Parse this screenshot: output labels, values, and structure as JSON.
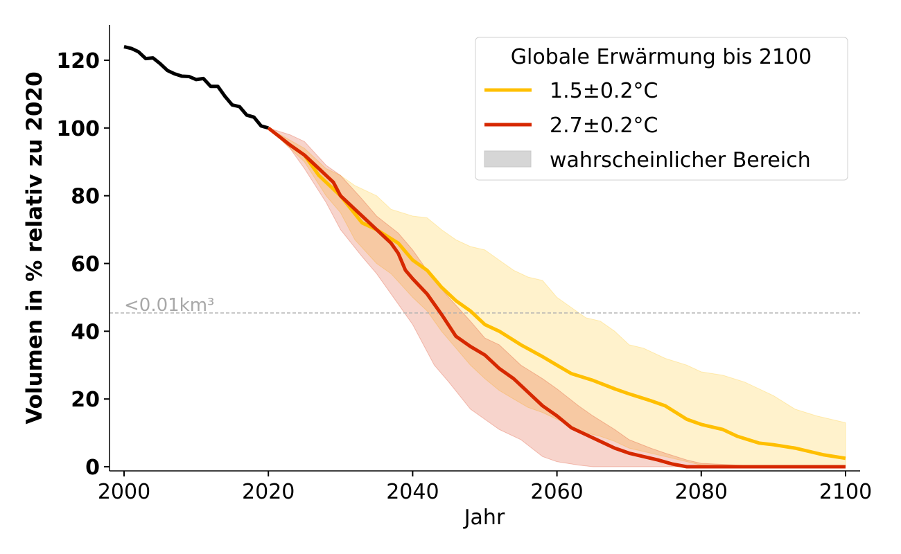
{
  "chart_data": {
    "type": "line",
    "xlabel": "Jahr",
    "ylabel": "Volumen in % relativ zu 2020",
    "xlim": [
      1998,
      2102
    ],
    "ylim": [
      -1.3,
      130
    ],
    "xticks": [
      2000,
      2020,
      2040,
      2060,
      2080,
      2100
    ],
    "yticks": [
      0,
      20,
      40,
      60,
      80,
      100,
      120
    ],
    "grid": false,
    "legend": {
      "title": "Globale Erwärmung bis 2100",
      "placement": "top-right",
      "entries": [
        "1.5±0.2°C",
        "2.7±0.2°C",
        "wahrscheinlicher Bereich"
      ]
    },
    "reference_line": {
      "y": 45.4,
      "label": "<0.01km³",
      "color": "#b0b0b0"
    },
    "colors": {
      "historical": "#000000",
      "low": "#FFBF00",
      "high": "#D62800",
      "band_neutral": "#d6d6d6"
    },
    "historical": {
      "x": [
        2000,
        2001,
        2002,
        2003,
        2004,
        2005,
        2006,
        2007,
        2008,
        2009,
        2010,
        2011,
        2012,
        2013,
        2014,
        2015,
        2016,
        2017,
        2018,
        2019,
        2020
      ],
      "y": [
        124,
        123.5,
        122.5,
        120.5,
        120.7,
        119,
        117,
        116,
        115.3,
        115.2,
        114.3,
        114.6,
        112.3,
        112.3,
        109.3,
        106.8,
        106.3,
        103.8,
        103.2,
        100.6,
        100
      ]
    },
    "series": [
      {
        "name": "1.5±0.2°C",
        "x": [
          2020,
          2023,
          2025,
          2027,
          2029,
          2030,
          2033,
          2035,
          2038,
          2040,
          2042,
          2044,
          2046,
          2048,
          2050,
          2052,
          2055,
          2058,
          2060,
          2062,
          2065,
          2068,
          2070,
          2073,
          2075,
          2078,
          2080,
          2083,
          2085,
          2088,
          2090,
          2093,
          2095,
          2097,
          2100
        ],
        "y": [
          100,
          95,
          92,
          86,
          82,
          80,
          72,
          70,
          66,
          61,
          58,
          53,
          49,
          46,
          42,
          40,
          36,
          32.5,
          30,
          27.5,
          25.5,
          23,
          21.5,
          19.5,
          18,
          14,
          12.5,
          11,
          9,
          7,
          6.5,
          5.5,
          4.5,
          3.5,
          2.5
        ],
        "band_x": [
          2020,
          2025,
          2028,
          2030,
          2032,
          2035,
          2037,
          2040,
          2042,
          2044,
          2046,
          2048,
          2050,
          2052,
          2054,
          2056,
          2058,
          2060,
          2062,
          2064,
          2066,
          2068,
          2070,
          2072,
          2075,
          2078,
          2080,
          2083,
          2086,
          2090,
          2093,
          2096,
          2100
        ],
        "band_upper": [
          100,
          94,
          88,
          86,
          83,
          80,
          76,
          74,
          73.5,
          70,
          67,
          65,
          64,
          61,
          58,
          56,
          55,
          50,
          47,
          44,
          43,
          40,
          36,
          35,
          32,
          30,
          28,
          27,
          25,
          21,
          17,
          15,
          13
        ],
        "band_lower": [
          100,
          90,
          80,
          75,
          67,
          60,
          57,
          50,
          46,
          40,
          35,
          30,
          26,
          22.5,
          20,
          17.5,
          16,
          14,
          12,
          10,
          9,
          7.5,
          5.5,
          4.5,
          3,
          1.5,
          0.5,
          0.2,
          0,
          0,
          0,
          0,
          0
        ]
      },
      {
        "name": "2.7±0.2°C",
        "x": [
          2020,
          2023,
          2025,
          2027,
          2029,
          2030,
          2033,
          2035,
          2037,
          2038,
          2039,
          2040,
          2042,
          2044,
          2046,
          2048,
          2050,
          2052,
          2054,
          2056,
          2058,
          2060,
          2062,
          2064,
          2066,
          2068,
          2070,
          2072,
          2074,
          2076,
          2078,
          2100
        ],
        "y": [
          100,
          95,
          92,
          88,
          84,
          80,
          74,
          70,
          66,
          63,
          58,
          55.5,
          51,
          45,
          38.5,
          35.5,
          33,
          29,
          26,
          22,
          18,
          15,
          11.5,
          9.5,
          7.5,
          5.5,
          4,
          3,
          2,
          0.8,
          0,
          0
        ],
        "band_x": [
          2020,
          2023,
          2025,
          2028,
          2030,
          2033,
          2035,
          2038,
          2040,
          2043,
          2045,
          2048,
          2050,
          2052,
          2055,
          2058,
          2060,
          2063,
          2065,
          2068,
          2070,
          2073,
          2075,
          2078,
          2080,
          2085,
          2090,
          2100
        ],
        "band_upper": [
          100,
          98,
          96,
          89,
          86,
          79,
          74,
          69,
          64,
          55,
          50,
          43,
          38,
          36,
          30,
          26,
          23,
          18,
          15,
          11,
          8,
          5.5,
          4,
          2,
          1,
          0.5,
          0,
          0
        ],
        "band_lower": [
          100,
          94,
          88,
          78,
          70,
          62,
          57,
          48,
          42,
          30,
          25,
          17,
          14,
          11,
          8,
          3,
          1.5,
          0.5,
          0,
          0,
          0,
          0,
          0,
          0,
          0,
          0,
          0,
          0
        ]
      }
    ]
  }
}
